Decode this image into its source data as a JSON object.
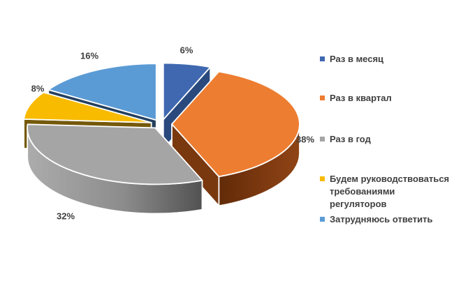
{
  "chart_data": {
    "type": "pie",
    "style": "3d-exploded-pie",
    "title": "",
    "legend_position": "right",
    "background": "#FFFFFF",
    "label_color": "#3F3F3F",
    "slices": [
      {
        "label": "Раз в месяц",
        "value": 6,
        "pct_label": "6%",
        "color": "#3F68B0",
        "side": "#2A4A7E"
      },
      {
        "label": "Раз в квартал",
        "value": 38,
        "pct_label": "38%",
        "color": "#ED7D31",
        "side": "#7A380F",
        "rim": [
          "#622B08",
          "#7D3910",
          "#8F4415"
        ]
      },
      {
        "label": "Раз в год",
        "value": 32,
        "pct_label": "32%",
        "color": "#A5A5A5",
        "side": "#6E6E6E",
        "rim": [
          "#ACACAC",
          "#8C8C8C",
          "#525252"
        ]
      },
      {
        "label": "Будем руководствоваться требованиями регуляторов",
        "value": 8,
        "pct_label": "8%",
        "color": "#F8BB00",
        "side": "#75590A"
      },
      {
        "label": "Затрудняюсь ответить",
        "value": 16,
        "pct_label": "16%",
        "color": "#5B9BD5",
        "side": "#24405F"
      }
    ]
  }
}
